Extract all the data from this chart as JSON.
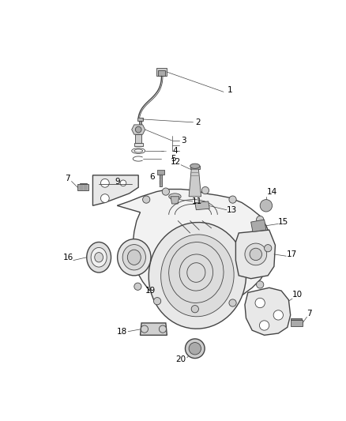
{
  "background_color": "#ffffff",
  "fig_width": 4.38,
  "fig_height": 5.33,
  "dpi": 100,
  "line_color": "#444444",
  "text_color": "#000000",
  "part_fontsize": 7.5,
  "lw_main": 1.0,
  "lw_thin": 0.6,
  "lw_label": 0.5
}
